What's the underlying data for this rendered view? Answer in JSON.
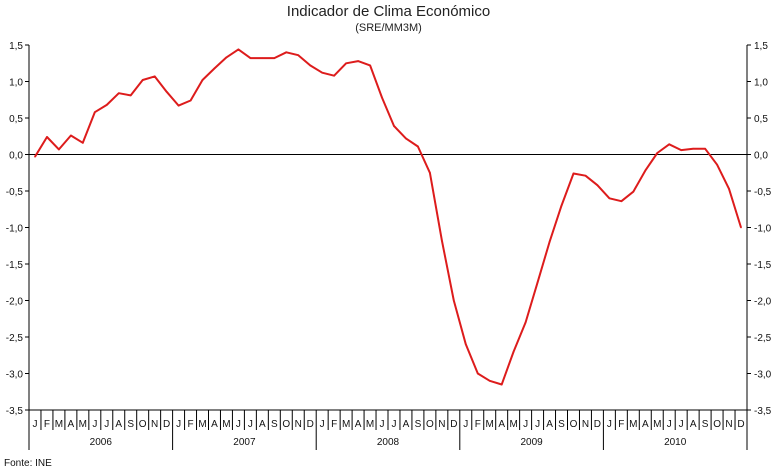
{
  "chart_data": {
    "type": "line",
    "title": "Indicador de Clima Económico",
    "subtitle": "(SRE/MM3M)",
    "source": "Fonte: INE",
    "ylim": [
      -3.5,
      1.5
    ],
    "yticks": [
      "1,5",
      "1,0",
      "0,5",
      "0,0",
      "-0,5",
      "-1,0",
      "-1,5",
      "-2,0",
      "-2,5",
      "-3,0",
      "-3,5"
    ],
    "yticks_right": [
      "1,5",
      "1,0",
      "0,5",
      "0,0",
      "-0,5",
      "-1,0",
      "-1,5",
      "-2,0",
      "-2,5",
      "-3,0",
      "-3,5"
    ],
    "month_labels": [
      "J",
      "F",
      "M",
      "A",
      "M",
      "J",
      "J",
      "A",
      "S",
      "O",
      "N",
      "D"
    ],
    "years": [
      "2006",
      "2007",
      "2008",
      "2009",
      "2010"
    ],
    "grid": false,
    "line_color": "#dd1c1c",
    "series": [
      {
        "values": [
          -0.03,
          0.24,
          0.07,
          0.26,
          0.16,
          0.58,
          0.68,
          0.84,
          0.81,
          1.02,
          1.07,
          0.86,
          0.67,
          0.74,
          1.02,
          1.18,
          1.33,
          1.44,
          1.32,
          1.32,
          1.32,
          1.4,
          1.36,
          1.22,
          1.12,
          1.08,
          1.25,
          1.28,
          1.22,
          0.78,
          0.39,
          0.22,
          0.11,
          -0.25,
          -1.18,
          -2.0,
          -2.6,
          -3.0,
          -3.1,
          -3.15,
          -2.7,
          -2.3,
          -1.75,
          -1.2,
          -0.7,
          -0.26,
          -0.29,
          -0.42,
          -0.6,
          -0.64,
          -0.51,
          -0.22,
          0.02,
          0.14,
          0.06,
          0.08,
          0.08,
          -0.14,
          -0.47,
          -1.0
        ]
      }
    ]
  }
}
